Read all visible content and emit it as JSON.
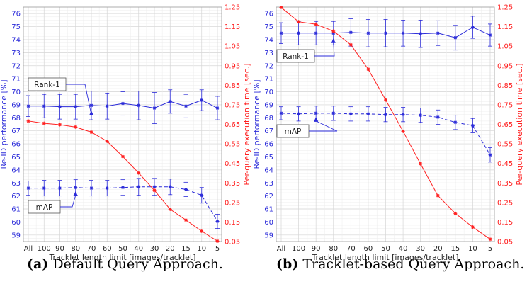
{
  "chart_data": [
    {
      "type": "line",
      "panel_label": "(a)",
      "caption": "Default Query Approach.",
      "categories": [
        "All",
        "100",
        "90",
        "80",
        "70",
        "60",
        "50",
        "40",
        "30",
        "20",
        "15",
        "10",
        "5"
      ],
      "xlabel": "Tracklet length limit [images/tracklet]",
      "ylabel_left": "Re-ID performance [%]",
      "ylabel_right": "Per-query execution time [sec.]",
      "ylim_left": [
        58.5,
        76.5
      ],
      "yticks_left": [
        59,
        60,
        61,
        62,
        63,
        64,
        65,
        66,
        67,
        68,
        69,
        70,
        71,
        72,
        73,
        74,
        75,
        76
      ],
      "ylim_right": [
        0.05,
        1.25
      ],
      "yticks_right": [
        "0.05",
        "0.15",
        "0.25",
        "0.35",
        "0.45",
        "0.55",
        "0.65",
        "0.75",
        "0.85",
        "0.95",
        "1.05",
        "1.15",
        "1.25"
      ],
      "grid": true,
      "series": [
        {
          "name": "Rank-1",
          "axis": "left",
          "color": "#2b2bd9",
          "dashed": false,
          "values": [
            68.9,
            68.9,
            68.85,
            68.85,
            68.95,
            68.9,
            69.1,
            68.95,
            68.75,
            69.25,
            68.9,
            69.35,
            68.75
          ],
          "errors": [
            0.8,
            0.9,
            0.95,
            0.95,
            1.1,
            1.0,
            0.9,
            1.1,
            1.2,
            0.9,
            0.9,
            0.8,
            0.9
          ]
        },
        {
          "name": "mAP",
          "axis": "left",
          "color": "#2b2bd9",
          "dashed": true,
          "values": [
            62.6,
            62.6,
            62.6,
            62.65,
            62.6,
            62.6,
            62.65,
            62.7,
            62.7,
            62.7,
            62.5,
            62.05,
            60.05
          ],
          "errors": [
            0.55,
            0.6,
            0.6,
            0.6,
            0.6,
            0.6,
            0.6,
            0.65,
            0.65,
            0.6,
            0.55,
            0.6,
            0.55
          ]
        },
        {
          "name": "Execution time",
          "axis": "right",
          "color": "#ff2020",
          "dashed": false,
          "values": [
            0.667,
            0.655,
            0.648,
            0.636,
            0.61,
            0.563,
            0.485,
            0.401,
            0.312,
            0.215,
            0.16,
            0.103,
            0.052
          ]
        }
      ],
      "annotations": [
        {
          "text": "Rank-1",
          "target_series": "Rank-1",
          "target_category": "70"
        },
        {
          "text": "mAP",
          "target_series": "mAP",
          "target_category": "80"
        }
      ]
    },
    {
      "type": "line",
      "panel_label": "(b)",
      "caption": "Tracklet-based Query Approach.",
      "categories": [
        "All",
        "100",
        "90",
        "80",
        "70",
        "60",
        "50",
        "40",
        "30",
        "20",
        "15",
        "10",
        "5"
      ],
      "xlabel": "Tracklet length limit [images/tracklet]",
      "ylabel_left": "Re-ID performance [%]",
      "ylabel_right": "Per-query execution time [sec.]",
      "ylim_left": [
        58.5,
        76.5
      ],
      "yticks_left": [
        59,
        60,
        61,
        62,
        63,
        64,
        65,
        66,
        67,
        68,
        69,
        70,
        71,
        72,
        73,
        74,
        75,
        76
      ],
      "ylim_right": [
        0.05,
        1.25
      ],
      "yticks_right": [
        "0.05",
        "0.15",
        "0.25",
        "0.35",
        "0.45",
        "0.55",
        "0.65",
        "0.75",
        "0.85",
        "0.95",
        "1.05",
        "1.15",
        "1.25"
      ],
      "grid": true,
      "series": [
        {
          "name": "Rank-1",
          "axis": "left",
          "color": "#2b2bd9",
          "dashed": false,
          "values": [
            74.5,
            74.5,
            74.5,
            74.5,
            74.55,
            74.5,
            74.5,
            74.5,
            74.45,
            74.5,
            74.15,
            74.95,
            74.35
          ],
          "errors": [
            0.8,
            0.9,
            0.9,
            0.9,
            1.05,
            1.05,
            1.05,
            1.0,
            1.05,
            0.95,
            0.95,
            0.85,
            0.85
          ]
        },
        {
          "name": "mAP",
          "axis": "left",
          "color": "#2b2bd9",
          "dashed": true,
          "values": [
            68.35,
            68.3,
            68.35,
            68.35,
            68.3,
            68.3,
            68.25,
            68.25,
            68.2,
            68.05,
            67.65,
            67.4,
            65.15
          ],
          "errors": [
            0.5,
            0.55,
            0.55,
            0.55,
            0.55,
            0.55,
            0.55,
            0.55,
            0.55,
            0.55,
            0.55,
            0.55,
            0.55
          ]
        },
        {
          "name": "Execution time",
          "axis": "right",
          "color": "#ff2020",
          "dashed": false,
          "values": [
            1.248,
            1.175,
            1.162,
            1.127,
            1.057,
            0.932,
            0.775,
            0.614,
            0.448,
            0.285,
            0.194,
            0.124,
            0.062
          ]
        }
      ],
      "annotations": [
        {
          "text": "Rank-1",
          "target_series": "Rank-1",
          "target_category": "80"
        },
        {
          "text": "mAP",
          "target_series": "mAP",
          "target_category": "90"
        }
      ]
    }
  ]
}
